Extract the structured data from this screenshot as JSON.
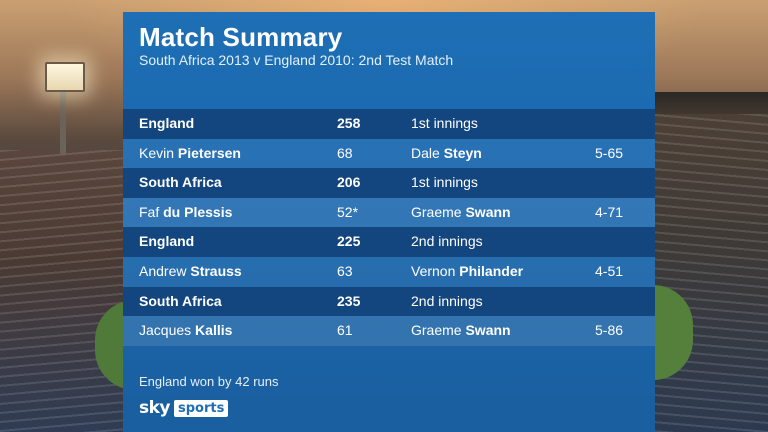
{
  "title": "Match Summary",
  "subtitle": "South Africa 2013 v England 2010:  2nd Test Match",
  "rows": [
    {
      "type": "team",
      "name": "England",
      "score": "258",
      "right": "1st innings"
    },
    {
      "type": "player",
      "first": "Kevin",
      "last": "Pietersen",
      "score": "68",
      "bowler_first": "Dale",
      "bowler_last": "Steyn",
      "figures": "5-65"
    },
    {
      "type": "team",
      "name": "South Africa",
      "score": "206",
      "right": "1st innings"
    },
    {
      "type": "player",
      "first": "Faf",
      "last": "du Plessis",
      "score": "52*",
      "bowler_first": "Graeme",
      "bowler_last": "Swann",
      "figures": "4-71"
    },
    {
      "type": "team",
      "name": "England",
      "score": "225",
      "right": "2nd innings"
    },
    {
      "type": "player",
      "first": "Andrew",
      "last": "Strauss",
      "score": "63",
      "bowler_first": "Vernon",
      "bowler_last": "Philander",
      "figures": "4-51"
    },
    {
      "type": "team",
      "name": "South Africa",
      "score": "235",
      "right": "2nd innings"
    },
    {
      "type": "player",
      "first": "Jacques",
      "last": "Kallis",
      "score": "61",
      "bowler_first": "Graeme",
      "bowler_last": "Swann",
      "figures": "5-86"
    }
  ],
  "result": "England won by 42 runs",
  "logo": {
    "sky": "sky",
    "sports": "sports"
  },
  "colors": {
    "panel": "#1e6fb5",
    "team_row": "#13457f",
    "text": "#ffffff"
  }
}
